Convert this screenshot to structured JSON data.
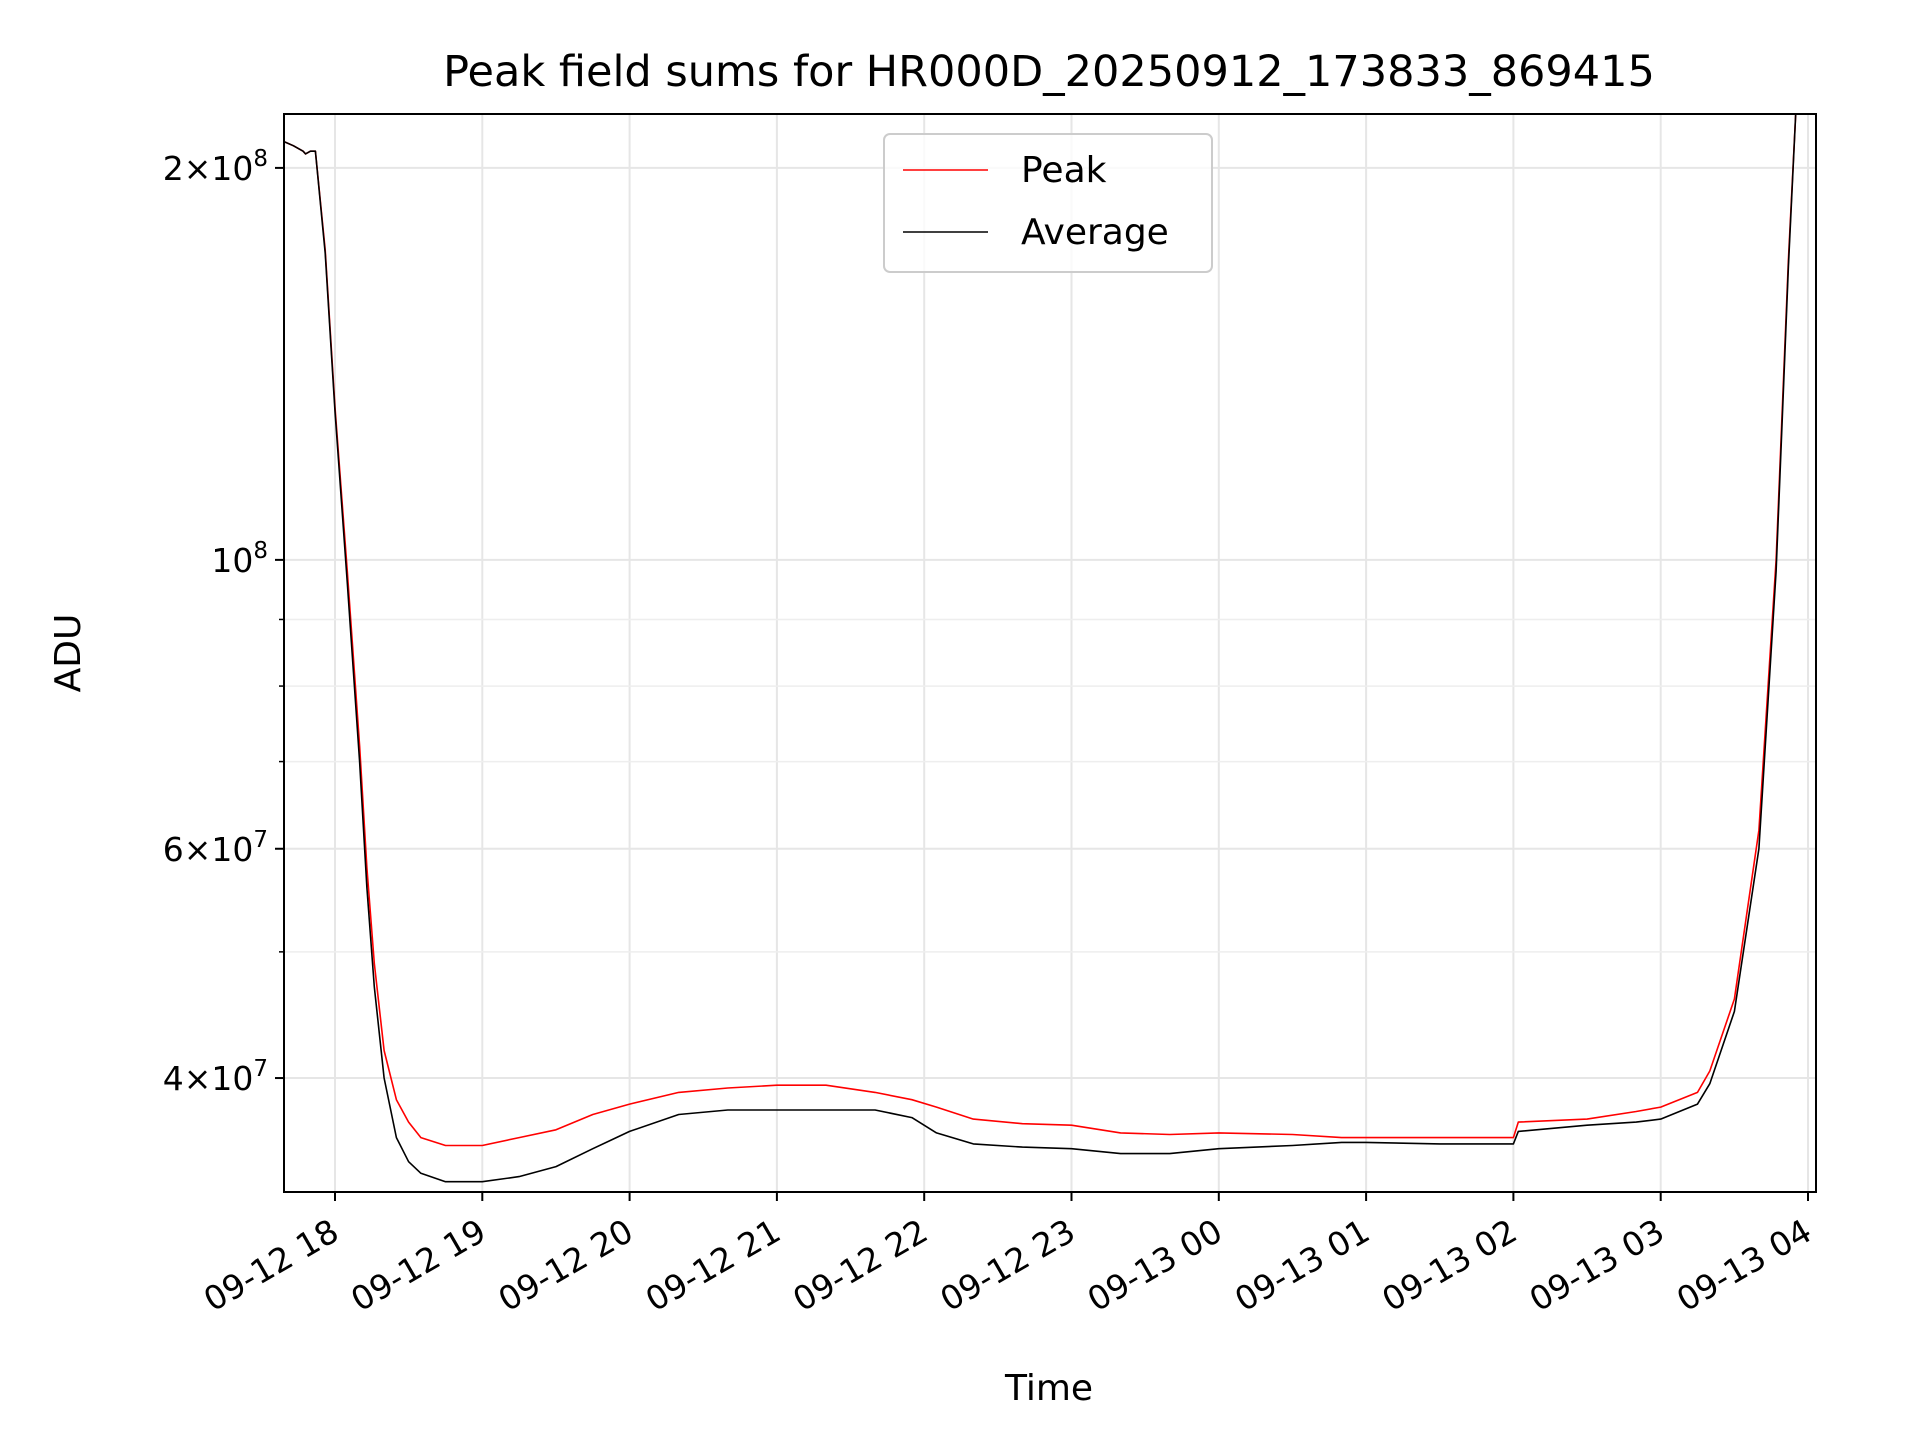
{
  "chart_data": {
    "type": "line",
    "title": "Peak field sums for HR000D_20250912_173833_869415",
    "xlabel": "Time",
    "ylabel": "ADU",
    "x_range": [
      "2025-09-12 17:38:33",
      "2025-09-13 03:55"
    ],
    "ylim": [
      32700000,
      220000000
    ],
    "y_scale": "log",
    "grid": true,
    "legend": {
      "placement": "upper center"
    },
    "x_ticks": [
      "09-12 18",
      "09-12 19",
      "09-12 20",
      "09-12 21",
      "09-12 22",
      "09-12 23",
      "09-13 00",
      "09-13 01",
      "09-13 02",
      "09-13 03",
      "09-13 04"
    ],
    "y_ticks": [
      {
        "value": 40000000,
        "mantissa": "4",
        "exp": "7"
      },
      {
        "value": 60000000,
        "mantissa": "6",
        "exp": "7"
      },
      {
        "value": 100000000,
        "mantissa": "",
        "exp": "8"
      },
      {
        "value": 200000000,
        "mantissa": "2",
        "exp": "8"
      }
    ],
    "y_minor_ticks": [
      50000000,
      70000000,
      80000000,
      90000000
    ],
    "series": [
      {
        "name": "Peak",
        "color": "#ff0000",
        "x": [
          "09-12 17:38",
          "09-12 17:43",
          "09-12 17:47",
          "09-12 17:48",
          "09-12 17:50",
          "09-12 17:52",
          "09-12 17:56",
          "09-12 18:00",
          "09-12 18:05",
          "09-12 18:10",
          "09-12 18:13",
          "09-12 18:16",
          "09-12 18:20",
          "09-12 18:25",
          "09-12 18:30",
          "09-12 18:35",
          "09-12 18:45",
          "09-12 19:00",
          "09-12 19:15",
          "09-12 19:30",
          "09-12 19:45",
          "09-12 20:00",
          "09-12 20:20",
          "09-12 20:40",
          "09-12 21:00",
          "09-12 21:20",
          "09-12 21:40",
          "09-12 21:55",
          "09-12 22:05",
          "09-12 22:20",
          "09-12 22:40",
          "09-12 23:00",
          "09-12 23:20",
          "09-12 23:40",
          "09-13 00:00",
          "09-13 00:30",
          "09-13 00:50",
          "09-13 01:00",
          "09-13 01:30",
          "09-13 02:00",
          "09-13 02:02",
          "09-13 02:30",
          "09-13 02:50",
          "09-13 03:00",
          "09-13 03:15",
          "09-13 03:20",
          "09-13 03:30",
          "09-13 03:40",
          "09-13 03:47",
          "09-13 03:52",
          "09-13 03:55"
        ],
        "y": [
          210000000,
          208000000,
          206000000,
          205000000,
          206000000,
          206000000,
          173000000,
          131000000,
          98000000,
          72000000,
          58000000,
          49000000,
          42000000,
          38500000,
          37000000,
          36000000,
          35500000,
          35500000,
          36000000,
          36500000,
          37500000,
          38200000,
          39000000,
          39300000,
          39500000,
          39500000,
          39000000,
          38500000,
          38000000,
          37200000,
          36900000,
          36800000,
          36300000,
          36200000,
          36300000,
          36200000,
          36000000,
          36000000,
          36000000,
          36000000,
          37000000,
          37200000,
          37700000,
          38000000,
          39000000,
          40500000,
          46000000,
          62000000,
          100000000,
          170000000,
          220000000
        ]
      },
      {
        "name": "Average",
        "color": "#000000",
        "x": [
          "09-12 17:38",
          "09-12 17:43",
          "09-12 17:47",
          "09-12 17:48",
          "09-12 17:50",
          "09-12 17:52",
          "09-12 17:56",
          "09-12 18:00",
          "09-12 18:05",
          "09-12 18:10",
          "09-12 18:13",
          "09-12 18:16",
          "09-12 18:20",
          "09-12 18:25",
          "09-12 18:30",
          "09-12 18:35",
          "09-12 18:45",
          "09-12 19:00",
          "09-12 19:15",
          "09-12 19:30",
          "09-12 19:45",
          "09-12 20:00",
          "09-12 20:20",
          "09-12 20:40",
          "09-12 21:00",
          "09-12 21:20",
          "09-12 21:40",
          "09-12 21:55",
          "09-12 22:05",
          "09-12 22:20",
          "09-12 22:40",
          "09-12 23:00",
          "09-12 23:20",
          "09-12 23:40",
          "09-13 00:00",
          "09-13 00:30",
          "09-13 00:50",
          "09-13 01:00",
          "09-13 01:30",
          "09-13 02:00",
          "09-13 02:02",
          "09-13 02:30",
          "09-13 02:50",
          "09-13 03:00",
          "09-13 03:15",
          "09-13 03:20",
          "09-13 03:30",
          "09-13 03:40",
          "09-13 03:47",
          "09-13 03:52",
          "09-13 03:55"
        ],
        "y": [
          210000000,
          208000000,
          206000000,
          205000000,
          206000000,
          206000000,
          172000000,
          130000000,
          96000000,
          70000000,
          56000000,
          47000000,
          40000000,
          36000000,
          34500000,
          33800000,
          33300000,
          33300000,
          33600000,
          34200000,
          35300000,
          36400000,
          37500000,
          37800000,
          37800000,
          37800000,
          37800000,
          37300000,
          36300000,
          35600000,
          35400000,
          35300000,
          35000000,
          35000000,
          35300000,
          35500000,
          35700000,
          35700000,
          35600000,
          35600000,
          36400000,
          36800000,
          37000000,
          37200000,
          38200000,
          39600000,
          45000000,
          60000000,
          98000000,
          168000000,
          220000000
        ]
      }
    ]
  }
}
